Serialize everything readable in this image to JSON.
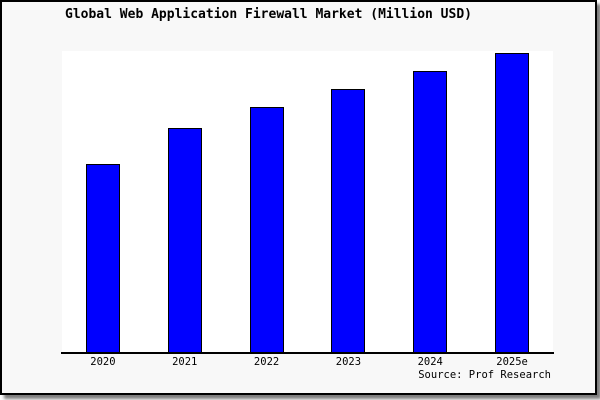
{
  "title": "Global Web Application Firewall Market (Million USD)",
  "footer": {
    "source": "Source: Prof Research"
  },
  "colors": {
    "bar_fill": "#0000ff",
    "bar_border": "#000000",
    "canvas_background": "#f8f8f8",
    "plot_background": "#ffffff",
    "axis": "#000000",
    "frame_border": "#000000"
  },
  "chart_data": {
    "type": "bar",
    "title": "Global Web Application Firewall Market (Million USD)",
    "categories": [
      "2020",
      "2021",
      "2022",
      "2023",
      "2024",
      "2025e"
    ],
    "values": [
      63,
      75,
      82,
      88,
      94,
      100
    ],
    "values_unit": "relative size (normalized, 2025e = 100); no numeric y-axis shown in chart",
    "xlabel": "",
    "ylabel": "",
    "ylim": [
      0,
      100
    ],
    "grid": false,
    "y_axis_visible": false,
    "legend": null,
    "source": "Source: Prof Research"
  }
}
